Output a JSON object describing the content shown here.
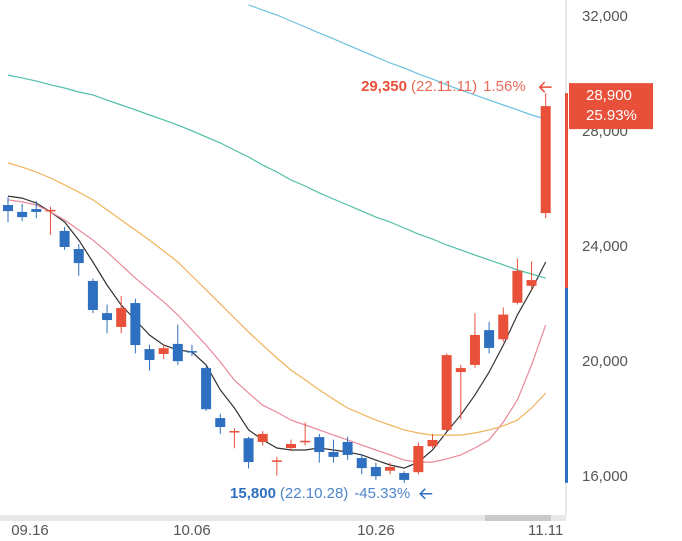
{
  "chart_data": {
    "type": "candlestick",
    "categories": [
      "09.16",
      null,
      null,
      null,
      null,
      null,
      null,
      null,
      null,
      null,
      null,
      null,
      null,
      "10.06",
      null,
      null,
      null,
      null,
      null,
      null,
      null,
      null,
      null,
      null,
      null,
      null,
      "10.26",
      null,
      null,
      null,
      null,
      null,
      null,
      null,
      null,
      null,
      null,
      null,
      "11.11"
    ],
    "open": [
      25460,
      25220,
      25320,
      25250,
      24560,
      23930,
      22820,
      21700,
      21220,
      22050,
      20450,
      20280,
      20630,
      20380,
      19790,
      18050,
      17560,
      17350,
      17220,
      16540,
      17010,
      17230,
      17390,
      16870,
      17220,
      16660,
      16350,
      16220,
      16140,
      16170,
      17070,
      17640,
      19650,
      19900,
      21110,
      20790,
      22060,
      22650,
      25180
    ],
    "high": [
      25740,
      25500,
      25600,
      25400,
      24700,
      24100,
      22900,
      22000,
      22300,
      22200,
      20600,
      20600,
      21300,
      20600,
      19850,
      18200,
      17700,
      17400,
      17600,
      16700,
      17300,
      17900,
      17500,
      17300,
      17400,
      16800,
      16500,
      16500,
      16200,
      17200,
      17500,
      20300,
      19900,
      21700,
      21400,
      21900,
      23600,
      23500,
      29350
    ],
    "low": [
      24870,
      24900,
      25000,
      24420,
      23900,
      23000,
      21700,
      21000,
      21000,
      20300,
      19700,
      20100,
      19900,
      20200,
      18300,
      17500,
      17000,
      16300,
      17100,
      16050,
      16900,
      17100,
      16500,
      16500,
      16600,
      16100,
      15900,
      16100,
      15800,
      16100,
      17000,
      17600,
      18000,
      19800,
      20300,
      20700,
      22000,
      22500,
      25000
    ],
    "close": [
      25250,
      25040,
      25220,
      25290,
      24000,
      23440,
      21810,
      21460,
      21880,
      20590,
      20070,
      20480,
      20030,
      20350,
      18360,
      17740,
      17600,
      16520,
      17500,
      16580,
      17150,
      17260,
      16870,
      16700,
      16770,
      16310,
      16030,
      16350,
      15900,
      17080,
      17290,
      20240,
      19790,
      20940,
      20490,
      21650,
      23170,
      22850,
      28900
    ],
    "up_color": "#e8503a",
    "down_color": "#2f6fbf",
    "series": [
      {
        "color": "#333333",
        "values": [
          25770,
          25700,
          25530,
          25220,
          24870,
          24240,
          23480,
          22680,
          21980,
          21460,
          20940,
          20590,
          20420,
          20350,
          19900,
          19030,
          18400,
          17640,
          17290,
          17010,
          16940,
          16940,
          17010,
          16940,
          16870,
          16770,
          16590,
          16420,
          16310,
          16520,
          16940,
          17570,
          18160,
          18850,
          19650,
          20590,
          21640,
          22510,
          23480
        ]
      },
      {
        "color": "#e8899a",
        "values": [
          25640,
          25570,
          25460,
          25220,
          24940,
          24590,
          24240,
          23830,
          23370,
          22920,
          22500,
          22090,
          21640,
          21110,
          20590,
          20000,
          19370,
          18920,
          18500,
          18260,
          17980,
          17810,
          17640,
          17460,
          17290,
          17110,
          16940,
          16770,
          16590,
          16520,
          16520,
          16630,
          16770,
          17010,
          17290,
          17910,
          18680,
          19900,
          21290
        ]
      },
      {
        "color": "#f0b35a",
        "values": [
          26920,
          26780,
          26610,
          26400,
          26160,
          25910,
          25640,
          25290,
          24940,
          24590,
          24240,
          23860,
          23480,
          22990,
          22510,
          22020,
          21530,
          21040,
          20590,
          20140,
          19720,
          19380,
          19030,
          18710,
          18400,
          18190,
          17980,
          17810,
          17640,
          17530,
          17460,
          17460,
          17460,
          17530,
          17640,
          17780,
          17980,
          18400,
          18920
        ]
      },
      {
        "color": "#4fbfa8",
        "values": [
          29980,
          29880,
          29770,
          29640,
          29530,
          29390,
          29290,
          29110,
          28940,
          28770,
          28590,
          28420,
          28240,
          28040,
          27830,
          27620,
          27370,
          27130,
          26850,
          26610,
          26330,
          26120,
          25880,
          25670,
          25460,
          25250,
          25040,
          24870,
          24660,
          24450,
          24280,
          24070,
          23900,
          23720,
          23550,
          23380,
          23200,
          23060,
          22920
        ]
      },
      {
        "color": "#6cc0e0",
        "values": [
          null,
          null,
          null,
          null,
          null,
          null,
          null,
          null,
          null,
          null,
          null,
          null,
          null,
          null,
          null,
          null,
          null,
          32420,
          32240,
          32070,
          31860,
          31650,
          31440,
          31240,
          31030,
          30820,
          30610,
          30400,
          30230,
          30020,
          29840,
          29640,
          29460,
          29290,
          29110,
          28940,
          28770,
          28590,
          28450
        ]
      }
    ],
    "ylim": [
      14680,
      32590
    ],
    "yticks": [
      {
        "value": 16000,
        "label": "16,000"
      },
      {
        "value": 20000,
        "label": "20,000"
      },
      {
        "value": 24000,
        "label": "24,000"
      },
      {
        "value": 28000,
        "label": "28,000"
      },
      {
        "value": 32000,
        "label": "32,000"
      }
    ],
    "high_annotation": {
      "value": {
        "value": 29350,
        "label": "29,350"
      },
      "date": "(22.11.11)",
      "change": "1.56%",
      "index": 38
    },
    "low_annotation": {
      "value": {
        "value": 15800,
        "label": "15,800"
      },
      "date": "(22.10.28)",
      "change": "-45.33%",
      "index": 28
    },
    "current_price": {
      "value": 28900,
      "label": "28,900"
    },
    "current_change": "25.93%"
  }
}
